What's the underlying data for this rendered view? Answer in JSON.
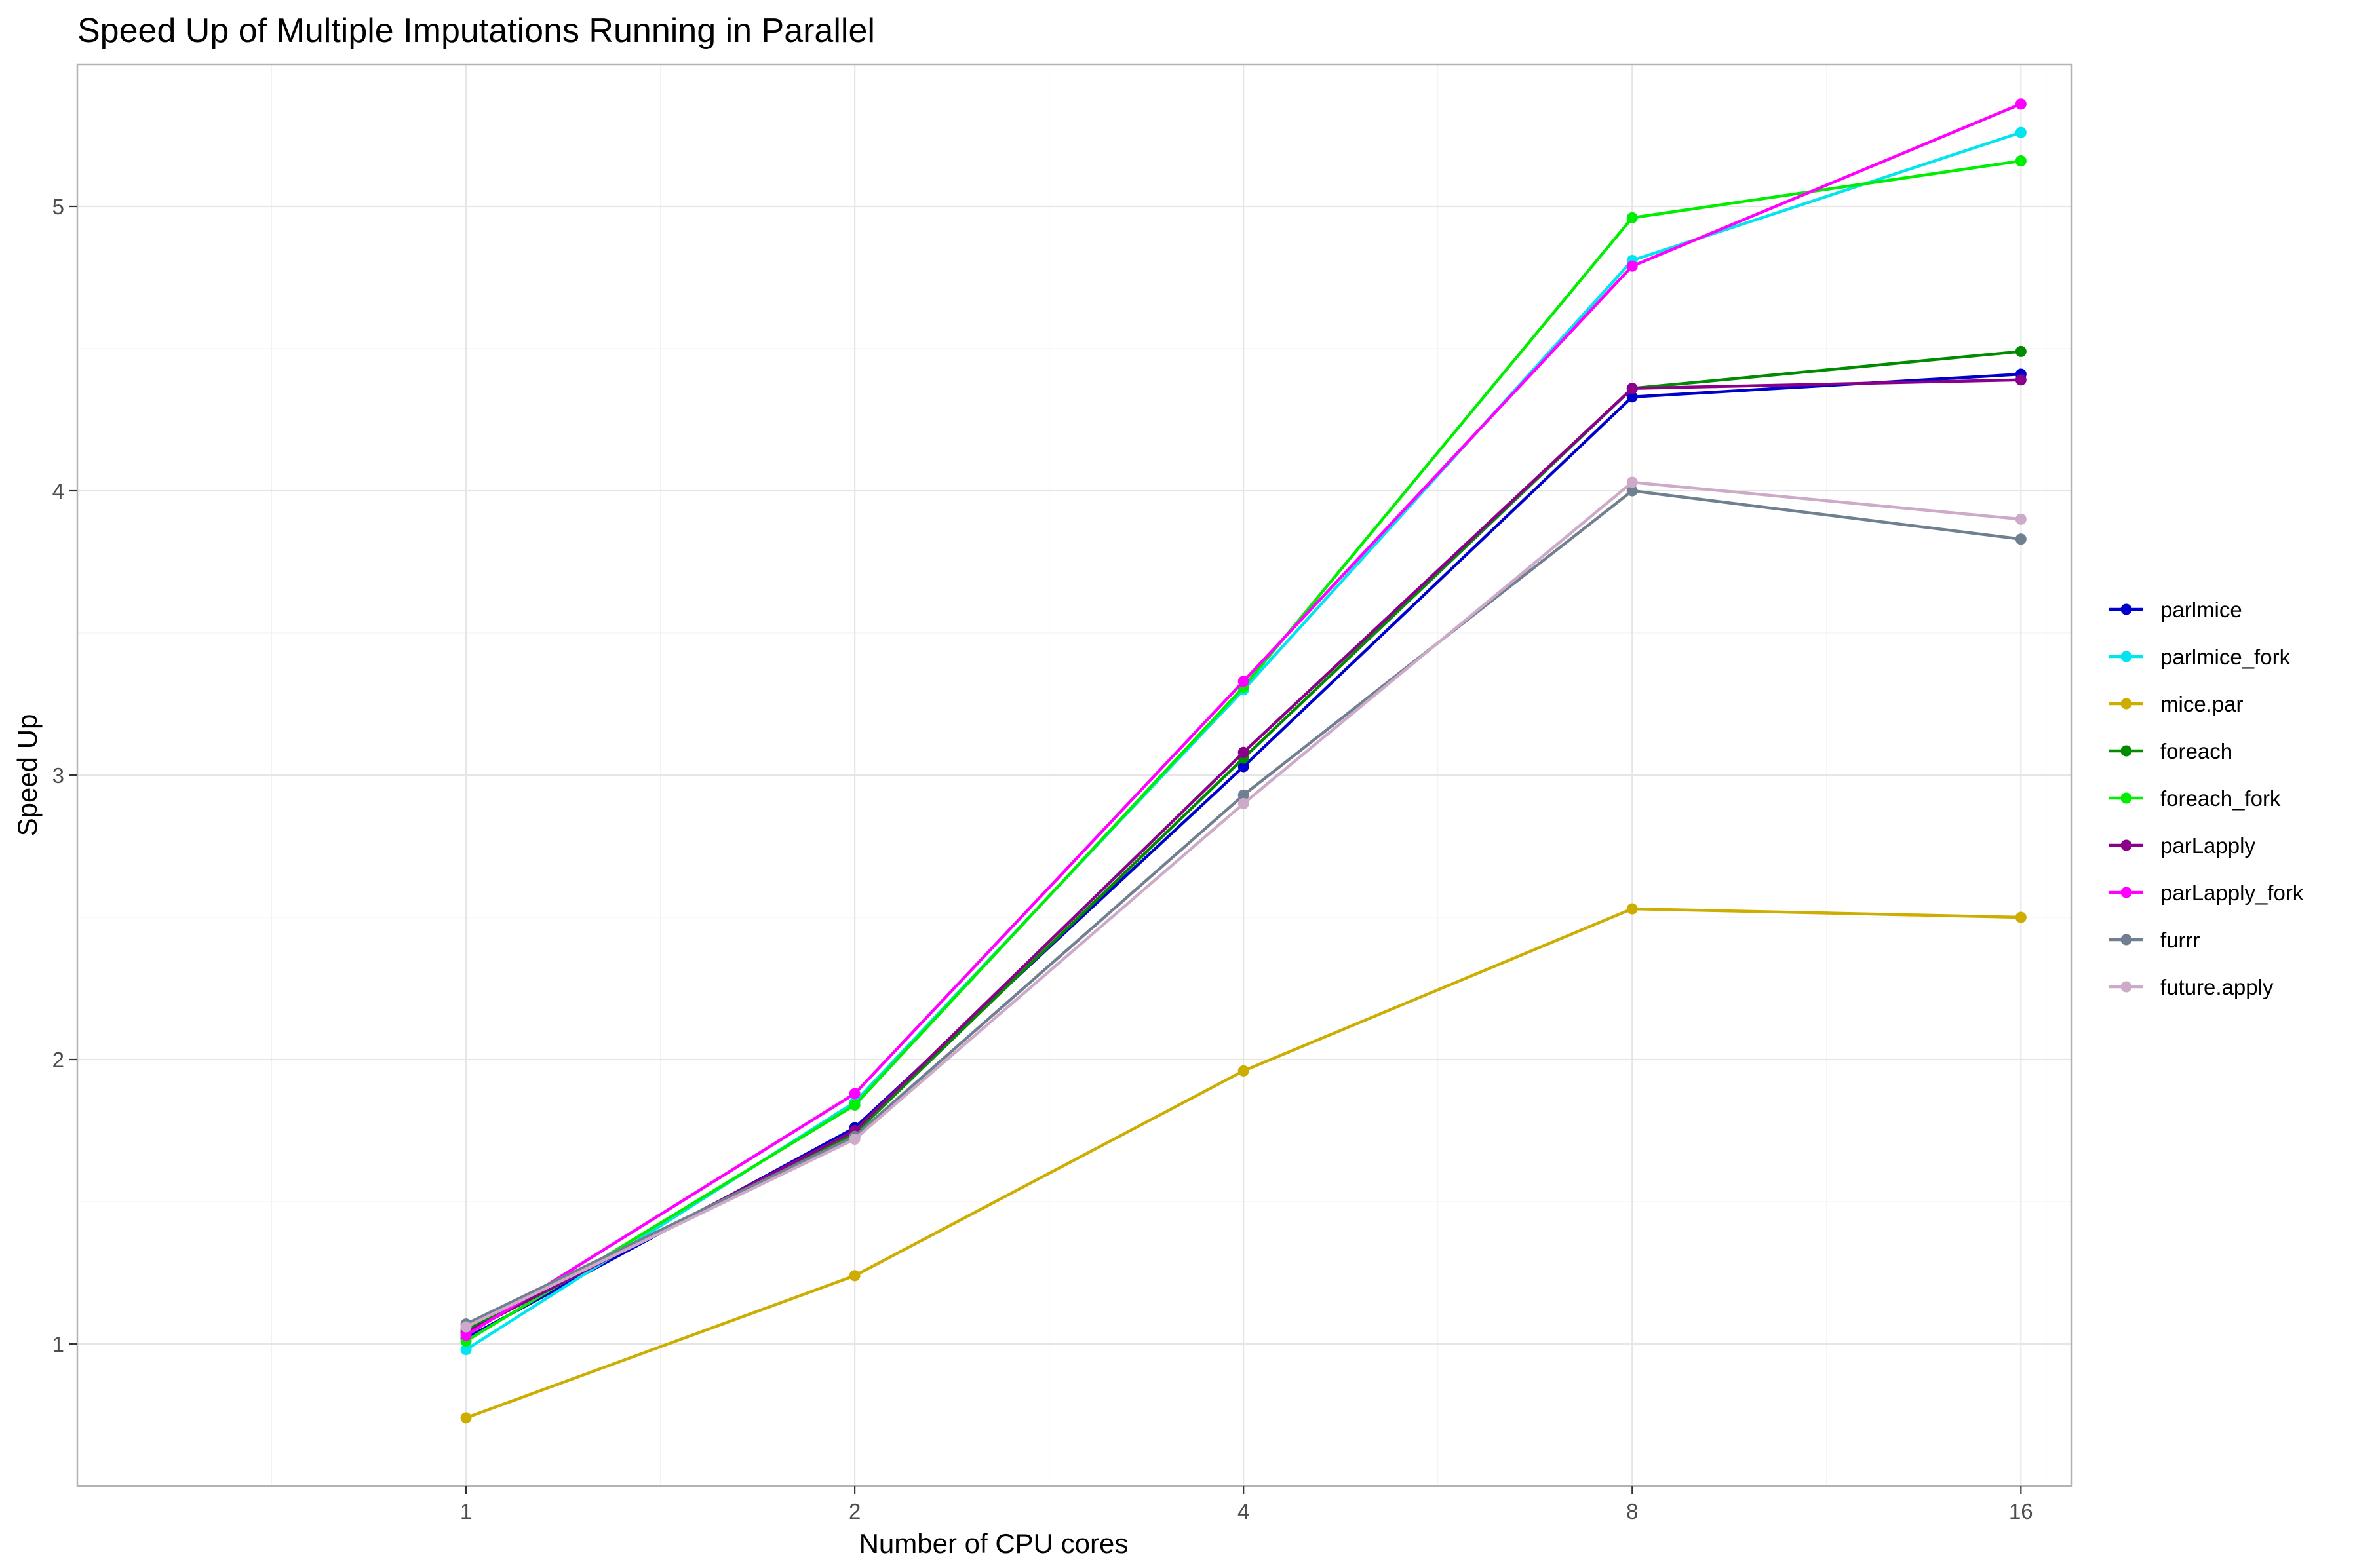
{
  "chart_data": {
    "type": "line",
    "title": "Speed Up of Multiple Imputations Running in Parallel",
    "xlabel": "Number of CPU cores",
    "ylabel": "Speed Up",
    "x": [
      1,
      2,
      4,
      8,
      16
    ],
    "x_ticks": [
      "1",
      "2",
      "4",
      "8",
      "16"
    ],
    "y_ticks": [
      "1",
      "2",
      "3",
      "4",
      "5"
    ],
    "y_tick_values": [
      1,
      2,
      3,
      4,
      5
    ],
    "xlim": [
      0.5,
      17.5
    ],
    "ylim": [
      0.5,
      5.5
    ],
    "x_scale": "log2",
    "grid": true,
    "legend_position": "right",
    "series": [
      {
        "name": "parlmice",
        "color": "#0000CD",
        "values": [
          1.02,
          1.76,
          3.03,
          4.33,
          4.41
        ]
      },
      {
        "name": "parlmice_fork",
        "color": "#00E5EE",
        "values": [
          0.98,
          1.85,
          3.3,
          4.81,
          5.26
        ]
      },
      {
        "name": "mice.par",
        "color": "#CDAD00",
        "values": [
          0.74,
          1.24,
          1.96,
          2.53,
          2.5
        ]
      },
      {
        "name": "foreach",
        "color": "#008B00",
        "values": [
          1.05,
          1.74,
          3.06,
          4.36,
          4.49
        ]
      },
      {
        "name": "foreach_fork",
        "color": "#00EE00",
        "values": [
          1.01,
          1.84,
          3.31,
          4.96,
          5.16
        ]
      },
      {
        "name": "parLapply",
        "color": "#8B008B",
        "values": [
          1.04,
          1.75,
          3.08,
          4.36,
          4.39
        ]
      },
      {
        "name": "parLapply_fork",
        "color": "#FF00FF",
        "values": [
          1.03,
          1.88,
          3.33,
          4.79,
          5.36
        ]
      },
      {
        "name": "furrr",
        "color": "#708090",
        "values": [
          1.07,
          1.73,
          2.93,
          4.0,
          3.83
        ]
      },
      {
        "name": "future.apply",
        "color": "#CDAAC8",
        "values": [
          1.06,
          1.72,
          2.9,
          4.03,
          3.9
        ]
      }
    ]
  }
}
